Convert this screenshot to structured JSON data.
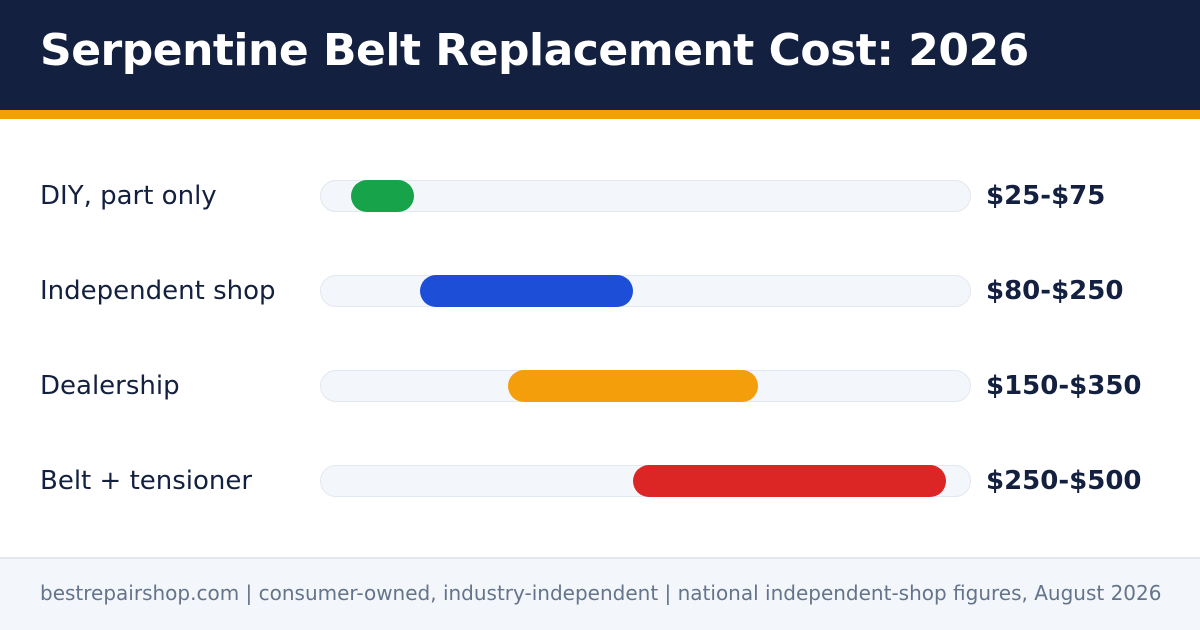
{
  "header": {
    "title": "Serpentine Belt Replacement Cost: 2026"
  },
  "colors": {
    "header_bg": "#13203f",
    "accent": "#f59e0b",
    "track": "#f3f6fa"
  },
  "chart_data": {
    "type": "bar",
    "orientation": "horizontal-range",
    "title": "Serpentine Belt Replacement Cost: 2026",
    "xlim": [
      0,
      520
    ],
    "grid": false,
    "categories": [
      "DIY, part only",
      "Independent shop",
      "Dealership",
      "Belt + tensioner"
    ],
    "ranges": [
      {
        "label": "DIY, part only",
        "low": 25,
        "high": 75,
        "display": "$25-$75",
        "color": "#16a34a"
      },
      {
        "label": "Independent shop",
        "low": 80,
        "high": 250,
        "display": "$80-$250",
        "color": "#1d4ed8"
      },
      {
        "label": "Dealership",
        "low": 150,
        "high": 350,
        "display": "$150-$350",
        "color": "#f59e0b"
      },
      {
        "label": "Belt + tensioner",
        "low": 250,
        "high": 500,
        "display": "$250-$500",
        "color": "#dc2626"
      }
    ]
  },
  "footer": {
    "text": "bestrepairshop.com | consumer-owned, industry-independent | national independent-shop figures, August 2026"
  }
}
